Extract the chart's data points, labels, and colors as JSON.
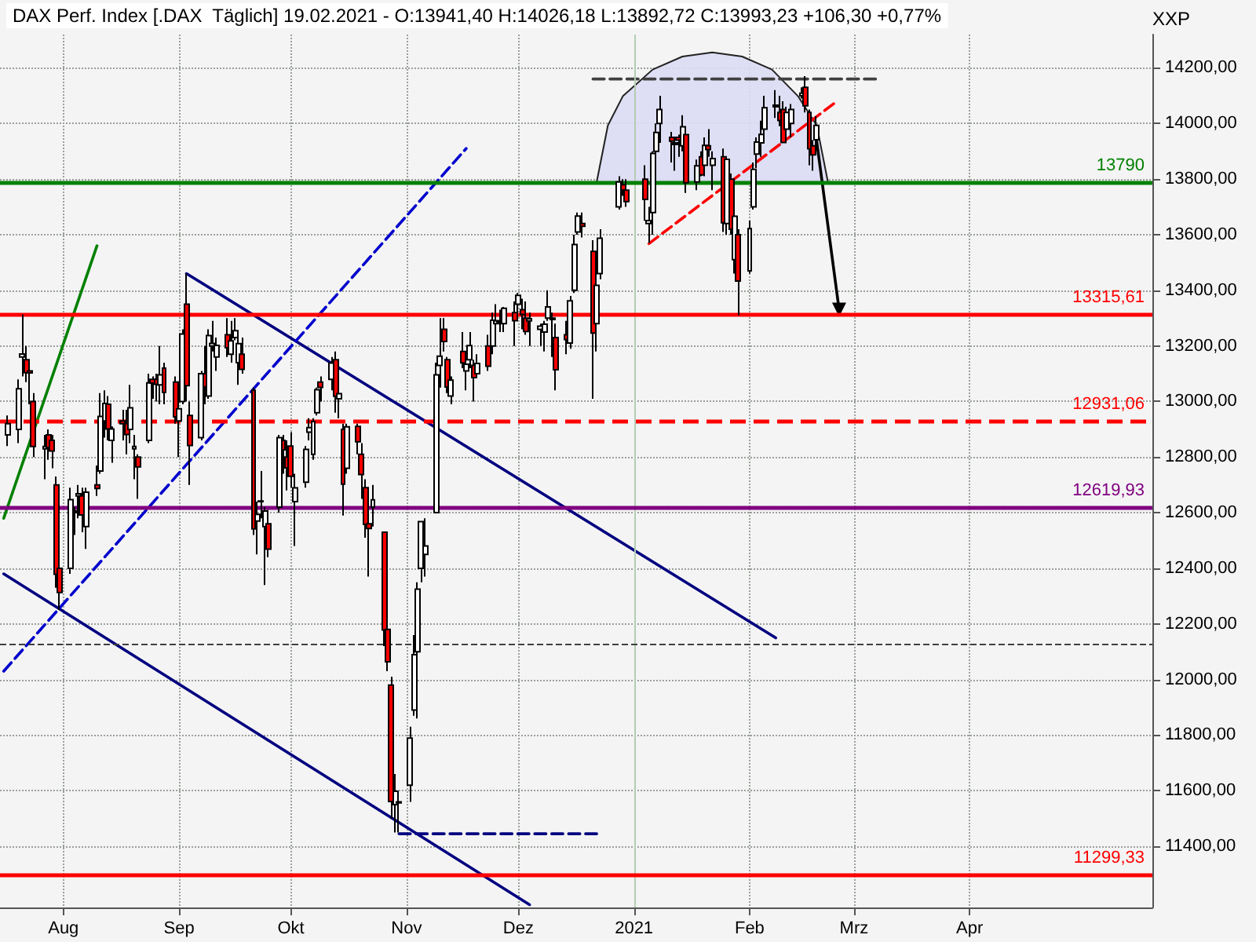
{
  "chart_data": {
    "type": "candlestick",
    "title": "DAX Perf. Index [.DAX  Täglich] 19.02.2021 - O:13941,40 H:14026,18 L:13892,72 C:13993,23 +106,30 +0,77%",
    "ylabel": "XXP",
    "x": [
      "2020-07-17",
      "2020-07-20",
      "2020-07-21",
      "2020-07-22",
      "2020-07-23",
      "2020-07-24",
      "2020-07-27",
      "2020-07-28",
      "2020-07-29",
      "2020-07-30",
      "2020-07-31",
      "2020-08-03",
      "2020-08-04",
      "2020-08-05",
      "2020-08-06",
      "2020-08-07",
      "2020-08-10",
      "2020-08-11",
      "2020-08-12",
      "2020-08-13",
      "2020-08-14",
      "2020-08-17",
      "2020-08-18",
      "2020-08-19",
      "2020-08-20",
      "2020-08-21",
      "2020-08-24",
      "2020-08-25",
      "2020-08-26",
      "2020-08-27",
      "2020-08-28",
      "2020-08-31",
      "2020-09-01",
      "2020-09-02",
      "2020-09-03",
      "2020-09-04",
      "2020-09-07",
      "2020-09-08",
      "2020-09-09",
      "2020-09-10",
      "2020-09-11",
      "2020-09-14",
      "2020-09-15",
      "2020-09-16",
      "2020-09-17",
      "2020-09-18",
      "2020-09-21",
      "2020-09-22",
      "2020-09-23",
      "2020-09-24",
      "2020-09-25",
      "2020-09-28",
      "2020-09-29",
      "2020-09-30",
      "2020-10-01",
      "2020-10-02",
      "2020-10-05",
      "2020-10-06",
      "2020-10-07",
      "2020-10-08",
      "2020-10-09",
      "2020-10-12",
      "2020-10-13",
      "2020-10-14",
      "2020-10-15",
      "2020-10-16",
      "2020-10-19",
      "2020-10-20",
      "2020-10-21",
      "2020-10-22",
      "2020-10-23",
      "2020-10-26",
      "2020-10-27",
      "2020-10-28",
      "2020-10-29",
      "2020-10-30",
      "2020-11-02",
      "2020-11-03",
      "2020-11-04",
      "2020-11-05",
      "2020-11-06",
      "2020-11-09",
      "2020-11-10",
      "2020-11-11",
      "2020-11-12",
      "2020-11-13",
      "2020-11-16",
      "2020-11-17",
      "2020-11-18",
      "2020-11-19",
      "2020-11-20",
      "2020-11-23",
      "2020-11-24",
      "2020-11-25",
      "2020-11-26",
      "2020-11-27",
      "2020-11-30",
      "2020-12-01",
      "2020-12-02",
      "2020-12-03",
      "2020-12-04",
      "2020-12-07",
      "2020-12-08",
      "2020-12-09",
      "2020-12-10",
      "2020-12-11",
      "2020-12-14",
      "2020-12-15",
      "2020-12-16",
      "2020-12-17",
      "2020-12-18",
      "2020-12-21",
      "2020-12-22",
      "2020-12-23",
      "2020-12-28",
      "2020-12-29",
      "2020-12-30",
      "2021-01-04",
      "2021-01-05",
      "2021-01-06",
      "2021-01-07",
      "2021-01-08",
      "2021-01-11",
      "2021-01-12",
      "2021-01-13",
      "2021-01-14",
      "2021-01-15",
      "2021-01-18",
      "2021-01-19",
      "2021-01-20",
      "2021-01-21",
      "2021-01-22",
      "2021-01-25",
      "2021-01-26",
      "2021-01-27",
      "2021-01-28",
      "2021-01-29",
      "2021-02-01",
      "2021-02-02",
      "2021-02-03",
      "2021-02-04",
      "2021-02-05",
      "2021-02-08",
      "2021-02-09",
      "2021-02-10",
      "2021-02-11",
      "2021-02-12",
      "2021-02-15",
      "2021-02-16",
      "2021-02-17",
      "2021-02-18",
      "2021-02-19"
    ],
    "ohlc": [
      [
        12880,
        12950,
        12840,
        12920
      ],
      [
        12900,
        13080,
        12850,
        13046
      ],
      [
        13160,
        13313,
        13090,
        13171
      ],
      [
        13150,
        13200,
        13070,
        13104
      ],
      [
        13110,
        13150,
        12990,
        13103
      ],
      [
        13000,
        13030,
        12800,
        12838
      ],
      [
        12830,
        12880,
        12720,
        12838
      ],
      [
        12880,
        12900,
        12790,
        12835
      ],
      [
        12860,
        12880,
        12760,
        12822
      ],
      [
        12700,
        12730,
        12330,
        12379
      ],
      [
        12400,
        12420,
        12250,
        12313
      ],
      [
        12400,
        12690,
        12380,
        12647
      ],
      [
        12600,
        12620,
        12520,
        12606
      ],
      [
        12660,
        12700,
        12580,
        12668
      ],
      [
        12660,
        12690,
        12530,
        12592
      ],
      [
        12550,
        12690,
        12470,
        12674
      ],
      [
        12700,
        12770,
        12660,
        12687
      ],
      [
        12750,
        13030,
        12740,
        12946
      ],
      [
        12930,
        13040,
        12870,
        12993
      ],
      [
        12990,
        13020,
        12860,
        12901
      ],
      [
        12860,
        12910,
        12780,
        12901
      ],
      [
        12930,
        12970,
        12860,
        12920
      ],
      [
        12920,
        12970,
        12810,
        12881
      ],
      [
        12900,
        13060,
        12850,
        12977
      ],
      [
        12830,
        12880,
        12720,
        12838
      ],
      [
        12800,
        12810,
        12650,
        12765
      ],
      [
        12860,
        13100,
        12850,
        13067
      ],
      [
        13080,
        13090,
        13010,
        13066
      ],
      [
        13080,
        13100,
        13000,
        13062
      ],
      [
        13060,
        13200,
        12990,
        13096
      ],
      [
        13120,
        13140,
        12990,
        13033
      ],
      [
        13070,
        13090,
        12920,
        12945
      ],
      [
        12930,
        13000,
        12800,
        12974
      ],
      [
        13000,
        13260,
        12990,
        13243
      ],
      [
        13350,
        13460,
        13000,
        13057
      ],
      [
        12950,
        13000,
        12700,
        12842
      ],
      [
        12870,
        13110,
        12860,
        13100
      ],
      [
        13100,
        13200,
        12990,
        13053
      ],
      [
        13020,
        13260,
        13010,
        13237
      ],
      [
        13200,
        13290,
        13180,
        13209
      ],
      [
        13160,
        13230,
        13110,
        13202
      ],
      [
        13240,
        13300,
        13160,
        13193
      ],
      [
        13170,
        13290,
        13140,
        13218
      ],
      [
        13230,
        13300,
        13220,
        13255
      ],
      [
        13140,
        13240,
        13060,
        13208
      ],
      [
        13170,
        13230,
        13100,
        13116
      ],
      [
        13040,
        13050,
        12520,
        12542
      ],
      [
        12570,
        12640,
        12450,
        12594
      ],
      [
        12640,
        12750,
        12580,
        12642
      ],
      [
        12550,
        12620,
        12340,
        12606
      ],
      [
        12560,
        12610,
        12440,
        12469
      ],
      [
        12620,
        12880,
        12600,
        12870
      ],
      [
        12860,
        12880,
        12740,
        12826
      ],
      [
        12800,
        12860,
        12680,
        12761
      ],
      [
        12840,
        12890,
        12690,
        12731
      ],
      [
        12640,
        12740,
        12480,
        12689
      ],
      [
        12710,
        12840,
        12690,
        12828
      ],
      [
        12890,
        12940,
        12860,
        12906
      ],
      [
        12810,
        12940,
        12790,
        12928
      ],
      [
        12960,
        13050,
        12950,
        13042
      ],
      [
        13070,
        13090,
        13000,
        13051
      ],
      [
        13080,
        13160,
        13040,
        13138
      ],
      [
        13150,
        13180,
        12960,
        13019
      ],
      [
        13010,
        13070,
        12940,
        13028
      ],
      [
        12900,
        12920,
        12590,
        12703
      ],
      [
        12760,
        12920,
        12740,
        12909
      ],
      [
        12910,
        12920,
        12810,
        12855
      ],
      [
        12810,
        12850,
        12650,
        12737
      ],
      [
        12690,
        12720,
        12510,
        12558
      ],
      [
        12560,
        12570,
        12370,
        12543
      ],
      [
        12620,
        12700,
        12550,
        12646
      ],
      [
        12530,
        12530,
        12120,
        12178
      ],
      [
        12180,
        12200,
        12030,
        12064
      ],
      [
        11980,
        12010,
        11500,
        11561
      ],
      [
        11550,
        11660,
        11450,
        11598
      ],
      [
        11560,
        11600,
        11450,
        11556
      ],
      [
        11620,
        11830,
        11560,
        11789
      ],
      [
        11890,
        12160,
        11870,
        12089
      ],
      [
        12100,
        12350,
        11860,
        12325
      ],
      [
        12400,
        12570,
        12350,
        12568
      ],
      [
        12450,
        12580,
        12370,
        12480
      ],
      [
        12600,
        13140,
        12600,
        13096
      ],
      [
        13130,
        13300,
        13050,
        13163
      ],
      [
        13260,
        13300,
        13180,
        13216
      ],
      [
        13150,
        13160,
        13030,
        13052
      ],
      [
        13020,
        13090,
        12990,
        13077
      ],
      [
        13180,
        13250,
        13120,
        13139
      ],
      [
        13110,
        13140,
        13040,
        13134
      ],
      [
        13150,
        13250,
        13120,
        13201
      ],
      [
        13130,
        13150,
        13000,
        13086
      ],
      [
        13100,
        13170,
        13090,
        13137
      ],
      [
        13200,
        13240,
        13110,
        13127
      ],
      [
        13200,
        13320,
        13170,
        13292
      ],
      [
        13280,
        13350,
        13260,
        13290
      ],
      [
        13290,
        13330,
        13250,
        13286
      ],
      [
        13280,
        13340,
        13250,
        13335
      ],
      [
        13320,
        13360,
        13200,
        13291
      ],
      [
        13350,
        13390,
        13290,
        13382
      ],
      [
        13330,
        13370,
        13260,
        13313
      ],
      [
        13300,
        13360,
        13240,
        13252
      ],
      [
        13290,
        13320,
        13200,
        13298
      ],
      [
        13260,
        13280,
        13200,
        13271
      ],
      [
        13250,
        13290,
        13180,
        13278
      ],
      [
        13300,
        13400,
        13290,
        13340
      ],
      [
        13300,
        13320,
        13160,
        13295
      ],
      [
        13230,
        13280,
        13040,
        13114
      ],
      [
        13240,
        13290,
        13170,
        13223
      ],
      [
        13210,
        13380,
        13190,
        13362
      ],
      [
        13400,
        13600,
        13390,
        13565
      ],
      [
        13610,
        13680,
        13600,
        13667
      ],
      [
        13640,
        13680,
        13590,
        13630
      ],
      [
        13540,
        13580,
        13010,
        13246
      ],
      [
        13280,
        13440,
        13180,
        13418
      ],
      [
        13460,
        13620,
        13440,
        13587
      ],
      [
        13700,
        13810,
        13690,
        13790
      ],
      [
        13780,
        13800,
        13740,
        13761
      ],
      [
        13760,
        13800,
        13700,
        13719
      ],
      [
        13800,
        13850,
        13650,
        13727
      ],
      [
        13640,
        13700,
        13570,
        13651
      ],
      [
        13680,
        13900,
        13600,
        13892
      ],
      [
        13900,
        14000,
        13880,
        13968
      ],
      [
        14000,
        14100,
        13930,
        14050
      ],
      [
        13950,
        13970,
        13860,
        13937
      ],
      [
        13930,
        13950,
        13830,
        13925
      ],
      [
        13950,
        13960,
        13880,
        13940
      ],
      [
        13920,
        14030,
        13900,
        13988
      ],
      [
        13960,
        13970,
        13750,
        13787
      ],
      [
        13790,
        13870,
        13760,
        13848
      ],
      [
        13880,
        13900,
        13810,
        13815
      ],
      [
        13850,
        13950,
        13810,
        13921
      ],
      [
        13920,
        13980,
        13880,
        13906
      ],
      [
        13850,
        13900,
        13760,
        13874
      ],
      [
        13880,
        13910,
        13610,
        13643
      ],
      [
        13640,
        13880,
        13600,
        13871
      ],
      [
        13800,
        13820,
        13600,
        13620
      ],
      [
        13510,
        13670,
        13460,
        13666
      ],
      [
        13600,
        13620,
        13310,
        13433
      ],
      [
        13470,
        13650,
        13460,
        13622
      ],
      [
        13700,
        13860,
        13690,
        13835
      ],
      [
        13890,
        13950,
        13840,
        13933
      ],
      [
        13930,
        14010,
        13880,
        13961
      ],
      [
        13980,
        14100,
        13960,
        14057
      ],
      [
        14060,
        14120,
        14020,
        14066
      ],
      [
        14040,
        14100,
        13990,
        14011
      ],
      [
        14050,
        14080,
        13930,
        13932
      ],
      [
        13980,
        14060,
        13980,
        14040
      ],
      [
        14000,
        14070,
        13950,
        14050
      ],
      [
        14100,
        14130,
        14090,
        14109
      ],
      [
        14130,
        14170,
        14040,
        14064
      ],
      [
        14040,
        14050,
        13850,
        13909
      ],
      [
        13920,
        13940,
        13830,
        13887
      ],
      [
        13941.4,
        14026.18,
        13892.72,
        13993.23
      ]
    ],
    "colors": [
      "#ffffff",
      "#ffffff",
      "#ffffff",
      "#ff0000",
      "#ff0000",
      "#ff0000",
      "#ffffff",
      "#ff0000",
      "#ff0000",
      "#ff0000",
      "#ff0000",
      "#ffffff",
      "#ffffff",
      "#ffffff",
      "#ff0000",
      "#ffffff",
      "#ff0000",
      "#ffffff",
      "#ffffff",
      "#ff0000",
      "#ffffff",
      "#ff0000",
      "#ff0000",
      "#ffffff",
      "#ffffff",
      "#ff0000",
      "#ffffff",
      "#ff0000",
      "#ff0000",
      "#ffffff",
      "#ff0000",
      "#ff0000",
      "#ffffff",
      "#ffffff",
      "#ff0000",
      "#ff0000",
      "#ffffff",
      "#ff0000",
      "#ffffff",
      "#ffffff",
      "#ffffff",
      "#ff0000",
      "#ffffff",
      "#ffffff",
      "#ffffff",
      "#ff0000",
      "#ff0000",
      "#ffffff",
      "#ffffff",
      "#ffffff",
      "#ff0000",
      "#ffffff",
      "#ff0000",
      "#ff0000",
      "#ff0000",
      "#ffffff",
      "#ffffff",
      "#ffffff",
      "#ffffff",
      "#ffffff",
      "#ff0000",
      "#ffffff",
      "#ff0000",
      "#ffffff",
      "#ff0000",
      "#ffffff",
      "#ff0000",
      "#ff0000",
      "#ff0000",
      "#ff0000",
      "#ffffff",
      "#ff0000",
      "#ff0000",
      "#ff0000",
      "#ffffff",
      "#ff0000",
      "#ffffff",
      "#ffffff",
      "#ffffff",
      "#ffffff",
      "#ffffff",
      "#ffffff",
      "#ffffff",
      "#ff0000",
      "#ff0000",
      "#ffffff",
      "#ff0000",
      "#ffffff",
      "#ffffff",
      "#ff0000",
      "#ffffff",
      "#ff0000",
      "#ffffff",
      "#ffffff",
      "#ff0000",
      "#ffffff",
      "#ff0000",
      "#ffffff",
      "#ff0000",
      "#ff0000",
      "#ffffff",
      "#ffffff",
      "#ffffff",
      "#ffffff",
      "#ff0000",
      "#ff0000",
      "#ff0000",
      "#ffffff",
      "#ffffff",
      "#ffffff",
      "#ff0000",
      "#ff0000",
      "#ffffff",
      "#ffffff",
      "#ffffff",
      "#ff0000",
      "#ff0000",
      "#ff0000",
      "#ffffff",
      "#ffffff",
      "#ffffff",
      "#ffffff",
      "#ff0000",
      "#ff0000",
      "#ff0000",
      "#ffffff",
      "#ff0000",
      "#ffffff",
      "#ff0000",
      "#ffffff",
      "#ff0000",
      "#ffffff",
      "#ff0000",
      "#ffffff",
      "#ff0000",
      "#ffffff",
      "#ff0000",
      "#ffffff",
      "#ffffff",
      "#ffffff",
      "#ffffff",
      "#ffffff",
      "#ffffff",
      "#ff0000",
      "#ff0000",
      "#ffffff",
      "#ffffff",
      "#ffffff",
      "#ff0000",
      "#ff0000",
      "#ff0000",
      "#ffffff"
    ],
    "series": [
      {
        "type": "area",
        "color": "#dcdcf4",
        "x": [
          "2020-12-22",
          "2020-12-25",
          "2020-12-29",
          "2021-01-06",
          "2021-01-14",
          "2021-01-22",
          "2021-01-30",
          "2021-02-07",
          "2021-02-14",
          "2021-02-19",
          "2021-02-22"
        ],
        "values": [
          13790,
          13993,
          14098,
          14194,
          14241,
          14256,
          14241,
          14194,
          14098,
          13993,
          13790
        ]
      },
      {
        "type": "line",
        "color": "#008000",
        "x": [
          "2020-07-16",
          "2020-08-10"
        ],
        "values": [
          12580,
          13560
        ]
      },
      {
        "type": "line",
        "color": "#000080",
        "x": [
          "2020-09-03",
          "2021-02-08"
        ],
        "values": [
          13460,
          12150
        ]
      },
      {
        "type": "line",
        "color": "#000080",
        "x": [
          "2020-07-16",
          "2020-12-04"
        ],
        "values": [
          12380,
          11190
        ]
      },
      {
        "type": "line",
        "color": "#0000cd",
        "line_style": "dashed",
        "x": [
          "2020-07-16",
          "2020-11-17"
        ],
        "values": [
          12030,
          13910
        ]
      },
      {
        "type": "line",
        "color": "#000080",
        "line_style": "dashed",
        "x": [
          "2020-10-30",
          "2020-12-22"
        ],
        "values": [
          11445,
          11445
        ]
      },
      {
        "type": "line",
        "color": "#404040",
        "line_style": "dashed",
        "x": [
          "2020-12-21",
          "2021-03-08"
        ],
        "values": [
          14160,
          14160
        ]
      },
      {
        "type": "line",
        "color": "#ff0000",
        "line_style": "dashed",
        "x": [
          "2021-01-05",
          "2021-02-24"
        ],
        "values": [
          13568,
          14076
        ]
      },
      {
        "type": "line",
        "color": "#000000",
        "marker": "triangle",
        "x": [
          "2021-02-19",
          "2021-02-25"
        ],
        "values": [
          13935,
          13330
        ]
      }
    ],
    "ref_lines": [
      {
        "axis": "x",
        "value": "2021-01-01",
        "color": "#b4ccb4"
      },
      {
        "axis": "y",
        "value": 13790,
        "label": "13790",
        "color": "#008000"
      },
      {
        "axis": "y",
        "value": 13315.61,
        "label": "13315,61",
        "color": "#ff0000"
      },
      {
        "axis": "y",
        "value": 12931.06,
        "label": "12931,06",
        "color": "#ff0000",
        "line_style": "dashed"
      },
      {
        "axis": "y",
        "value": 12619.93,
        "label": "12619,93",
        "color": "#800080"
      },
      {
        "axis": "y",
        "value": 12130,
        "color": "#404040",
        "line_style": "dashed"
      },
      {
        "axis": "y",
        "value": 11299.33,
        "label": "11299,33",
        "color": "#ff0000"
      }
    ],
    "xlim": [
      "2020-07-15",
      "2021-05-20"
    ],
    "xticks": [
      {
        "value": "2020-08-01",
        "label": "Aug"
      },
      {
        "value": "2020-09-01",
        "label": "Sep"
      },
      {
        "value": "2020-10-01",
        "label": "Okt"
      },
      {
        "value": "2020-11-01",
        "label": "Nov"
      },
      {
        "value": "2020-12-01",
        "label": "Dez"
      },
      {
        "value": "2021-01-01",
        "label": "2021"
      },
      {
        "value": "2021-02-01",
        "label": "Feb"
      },
      {
        "value": "2021-03-01",
        "label": "Mrz"
      },
      {
        "value": "2021-04-01",
        "label": "Apr"
      }
    ],
    "ylim": [
      11180,
      14320
    ],
    "yticks": [
      {
        "value": 11400,
        "label": "11400,00"
      },
      {
        "value": 11600,
        "label": "11600,00"
      },
      {
        "value": 11800,
        "label": "11800,00"
      },
      {
        "value": 12000,
        "label": "12000,00"
      },
      {
        "value": 12200,
        "label": "12200,00"
      },
      {
        "value": 12400,
        "label": "12400,00"
      },
      {
        "value": 12600,
        "label": "12600,00"
      },
      {
        "value": 12800,
        "label": "12800,00"
      },
      {
        "value": 13000,
        "label": "13000,00"
      },
      {
        "value": 13200,
        "label": "13200,00"
      },
      {
        "value": 13400,
        "label": "13400,00"
      },
      {
        "value": 13600,
        "label": "13600,00"
      },
      {
        "value": 13800,
        "label": "13800,00"
      },
      {
        "value": 14000,
        "label": "14000,00"
      },
      {
        "value": 14200,
        "label": "14200,00"
      }
    ],
    "grid": true
  }
}
